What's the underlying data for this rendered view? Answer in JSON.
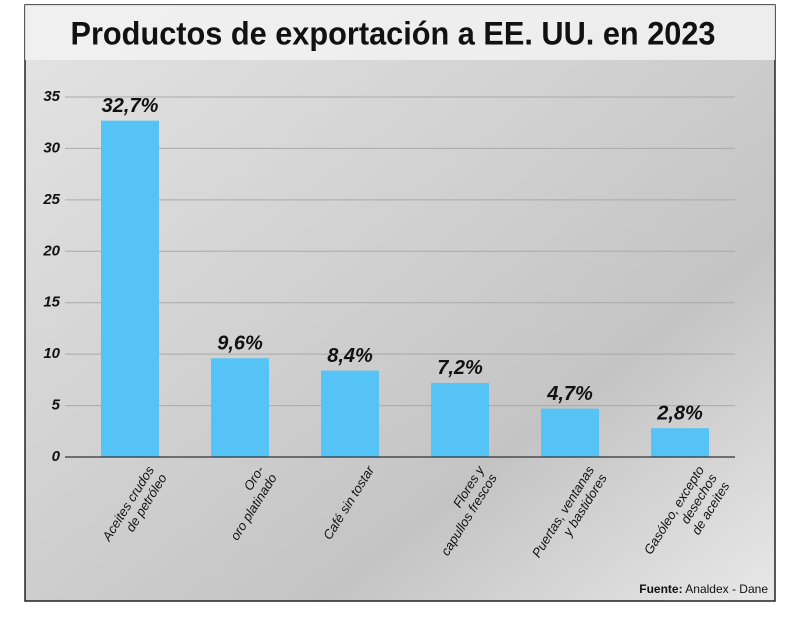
{
  "chart_data": {
    "type": "bar",
    "title": "Productos de exportación a EE. UU. en 2023",
    "categories": [
      [
        "Aceites crudos",
        "de petróleo"
      ],
      [
        "Oro-",
        "oro platinado"
      ],
      [
        "Café sin tostar"
      ],
      [
        "Flores y",
        "capullos frescos"
      ],
      [
        "Puertas, ventanas",
        "y bastidores"
      ],
      [
        "Gasóleo, excepto",
        "desechos",
        "de aceites"
      ]
    ],
    "values": [
      32.7,
      9.6,
      8.4,
      7.2,
      4.7,
      2.8
    ],
    "value_labels": [
      "32,7%",
      "9,6%",
      "8,4%",
      "7,2%",
      "4,7%",
      "2,8%"
    ],
    "color": "#55c3f5",
    "ylim": [
      0,
      35
    ],
    "yticks": [
      0,
      5,
      10,
      15,
      20,
      25,
      30,
      35
    ],
    "grid": true,
    "source": {
      "label": "Fuente:",
      "text": "Analdex - Dane"
    }
  }
}
